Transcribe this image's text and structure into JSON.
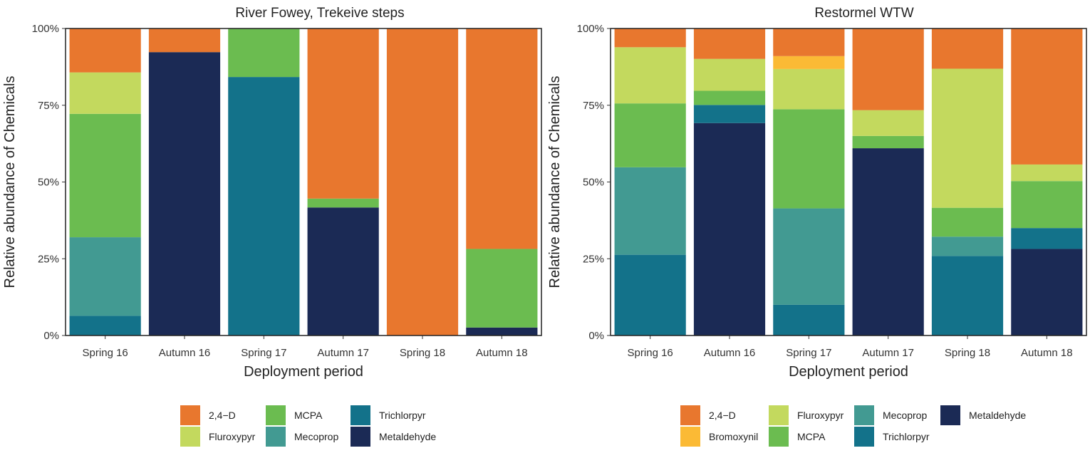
{
  "colors": {
    "2,4-D": "#E8772E",
    "Bromoxynil": "#FBBA35",
    "Fluroxypyr": "#C3D95E",
    "MCPA": "#6BBC50",
    "Mecoprop": "#429A92",
    "Trichlorpyr": "#13728A",
    "Metaldehyde": "#1B2A55"
  },
  "chart_data": [
    {
      "type": "bar",
      "stacked": true,
      "title": "River Fowey, Trekeive steps",
      "xlabel": "Deployment period",
      "ylabel": "Relative abundance of Chemicals",
      "ylim": [
        0,
        100
      ],
      "yticks": [
        "0%",
        "25%",
        "50%",
        "75%",
        "100%"
      ],
      "categories": [
        "Spring 16",
        "Autumn 16",
        "Spring 17",
        "Autumn 17",
        "Spring 18",
        "Autumn 18"
      ],
      "legend_position": "bottom",
      "legend": [
        "2,4−D",
        "Fluroxypyr",
        "MCPA",
        "Mecoprop",
        "Trichlorpyr",
        "Metaldehyde"
      ],
      "series": [
        {
          "name": "Metaldehyde",
          "values": [
            0,
            92.3,
            0,
            41.7,
            0,
            2.6
          ]
        },
        {
          "name": "Trichlorpyr",
          "values": [
            6.4,
            0,
            84.2,
            0,
            0,
            0
          ]
        },
        {
          "name": "Mecoprop",
          "values": [
            25.6,
            0,
            0,
            0,
            0,
            0
          ]
        },
        {
          "name": "MCPA",
          "values": [
            40.2,
            0,
            15.8,
            2.9,
            0,
            25.6
          ]
        },
        {
          "name": "Fluroxypyr",
          "values": [
            13.5,
            0,
            0,
            0,
            0,
            0
          ]
        },
        {
          "name": "2,4-D",
          "values": [
            14.3,
            7.7,
            0,
            55.4,
            100,
            71.8
          ]
        }
      ]
    },
    {
      "type": "bar",
      "stacked": true,
      "title": "Restormel WTW",
      "xlabel": "Deployment period",
      "ylabel": "Relative abundance of Chemicals",
      "ylim": [
        0,
        100
      ],
      "yticks": [
        "0%",
        "25%",
        "50%",
        "75%",
        "100%"
      ],
      "categories": [
        "Spring 16",
        "Autumn 16",
        "Spring 17",
        "Autumn 17",
        "Spring 18",
        "Autumn 18"
      ],
      "legend_position": "bottom",
      "legend": [
        "2,4−D",
        "Bromoxynil",
        "Fluroxypyr",
        "MCPA",
        "Mecoprop",
        "Trichlorpyr",
        "Metaldehyde"
      ],
      "series": [
        {
          "name": "Metaldehyde",
          "values": [
            0,
            69.2,
            0,
            61.0,
            0,
            28.2
          ]
        },
        {
          "name": "Trichlorpyr",
          "values": [
            26.3,
            5.9,
            10.0,
            0,
            25.9,
            6.8
          ]
        },
        {
          "name": "Mecoprop",
          "values": [
            28.5,
            0,
            31.4,
            0,
            6.3,
            0
          ]
        },
        {
          "name": "MCPA",
          "values": [
            20.8,
            4.6,
            32.3,
            4.0,
            9.4,
            15.3
          ]
        },
        {
          "name": "Fluroxypyr",
          "values": [
            18.3,
            10.4,
            13.1,
            8.4,
            45.3,
            5.4
          ]
        },
        {
          "name": "Bromoxynil",
          "values": [
            0,
            0,
            4.2,
            0,
            0,
            0
          ]
        },
        {
          "name": "2,4-D",
          "values": [
            6.1,
            9.9,
            9.0,
            26.6,
            13.1,
            44.3
          ]
        }
      ]
    }
  ]
}
